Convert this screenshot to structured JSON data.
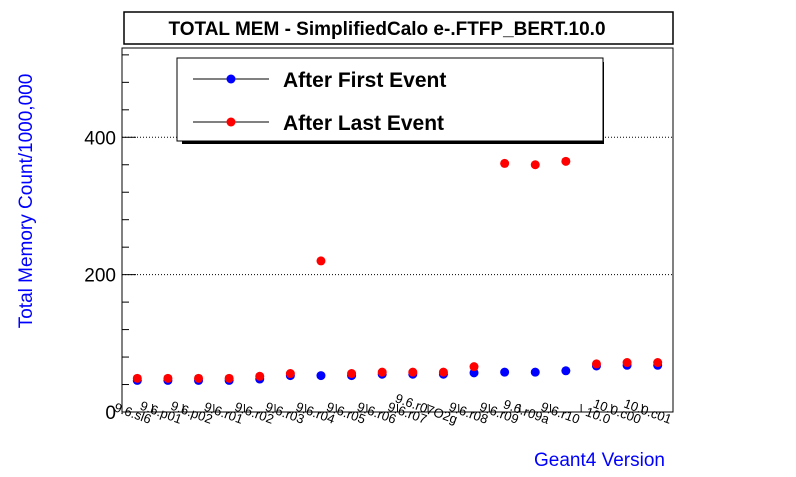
{
  "chart_data": {
    "type": "scatter",
    "title": "TOTAL MEM - SimplifiedCalo e-.FTFP_BERT.10.0",
    "xlabel": "Geant4 Version",
    "ylabel": "Total Memory Count/1000,000",
    "categories": [
      "9.6.sl6",
      "9.6.p01",
      "9.6.p02",
      "9.6.r01",
      "9.6.r02",
      "9.6.r03",
      "9.6.r04",
      "9.6.r05",
      "9.6.r06",
      "9.6.r07",
      "9.6.r07O2g",
      "9.6.r08",
      "9.6.r09",
      "9.6.r09a",
      "9.6.r10",
      "10.0",
      "10.0.c00",
      "10.0.c01"
    ],
    "series": [
      {
        "name": "After First Event",
        "color": "#0000ff",
        "values": [
          46,
          46,
          46,
          46,
          48,
          53,
          53,
          53,
          55,
          55,
          55,
          57,
          58,
          58,
          60,
          67,
          68,
          68
        ]
      },
      {
        "name": "After Last Event",
        "color": "#ff0000",
        "values": [
          49,
          49,
          49,
          49,
          52,
          56,
          220,
          56,
          58,
          58,
          58,
          66,
          362,
          360,
          365,
          70,
          72,
          72
        ]
      }
    ],
    "ylim": [
      0,
      530
    ],
    "yticks": [
      0,
      200,
      400
    ],
    "grid": "horizontal-dotted",
    "legend_position": "top-left"
  }
}
